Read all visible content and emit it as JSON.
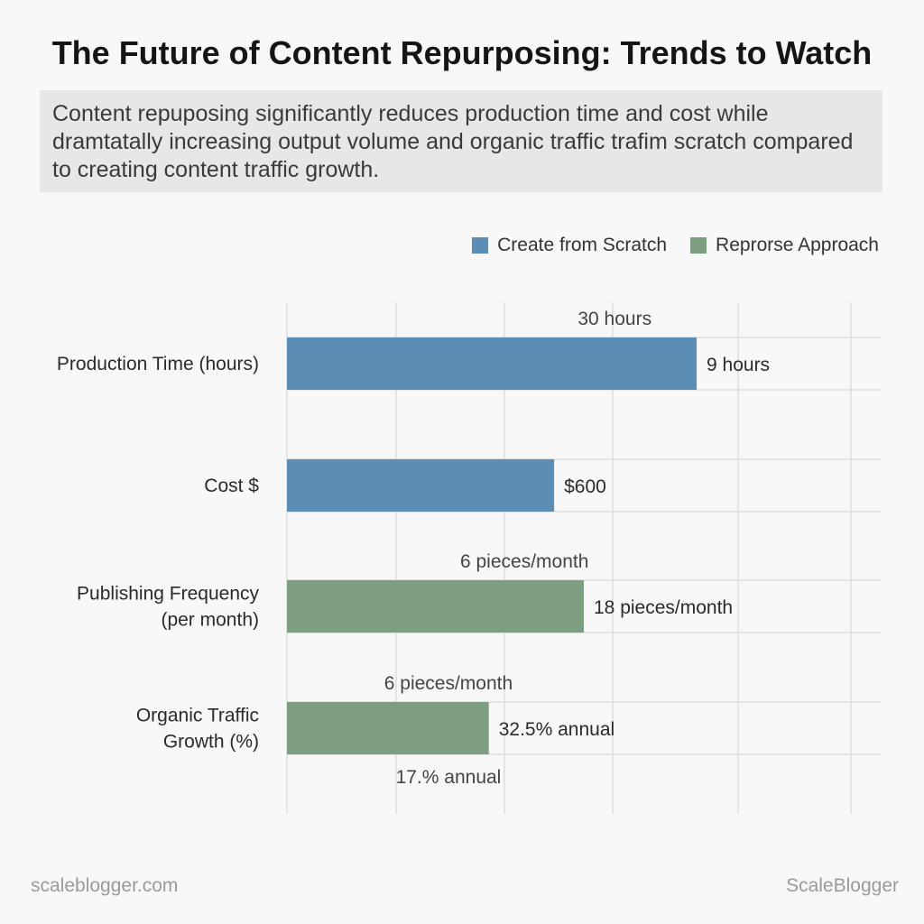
{
  "header": {
    "title": "The Future of Content Repurposing: Trends to Watch",
    "summary": "Content repuposing significantly reduces production time and cost while dramtatally increasing output volume and organic traffic trafim scratch compared to creating content traffic growth."
  },
  "colors": {
    "scratch": "#5b8db5",
    "repurpose": "#7d9e80",
    "grid": "#dddddd",
    "label": "#2a2a2a",
    "annotation": "#444444"
  },
  "chart_data": {
    "type": "bar",
    "orientation": "horizontal",
    "title": "",
    "xlabel": "",
    "ylabel": "",
    "legend": {
      "position": "top-right",
      "entries": [
        {
          "name": "Create from Scratch",
          "color": "#5b8db5"
        },
        {
          "name": "Reprorse Approach",
          "color": "#7d9e80"
        }
      ]
    },
    "grid": true,
    "bars": [
      {
        "category_lines": [
          "Production Time (hours)"
        ],
        "series": "Create from Scratch",
        "value": 0.69,
        "label": "9 hours",
        "above": "30 hours",
        "below": ""
      },
      {
        "category_lines": [
          "Cost $"
        ],
        "series": "Create from Scratch",
        "value": 0.45,
        "label": "$600",
        "above": "",
        "below": ""
      },
      {
        "category_lines": [
          "Publishing Frequency",
          "(per month)"
        ],
        "series": "Reprorse Approach",
        "value": 0.5,
        "label": "18 pieces/month",
        "above": "6 pieces/month",
        "below": ""
      },
      {
        "category_lines": [
          "Organic Traffic",
          "Growth (%)"
        ],
        "series": "Reprorse Approach",
        "value": 0.34,
        "label": "32.5% annual",
        "above": "6 pieces/month",
        "below": "17.% annual"
      }
    ]
  },
  "footer": {
    "left": "scaleblogger.com",
    "right": "ScaleBlogger"
  }
}
